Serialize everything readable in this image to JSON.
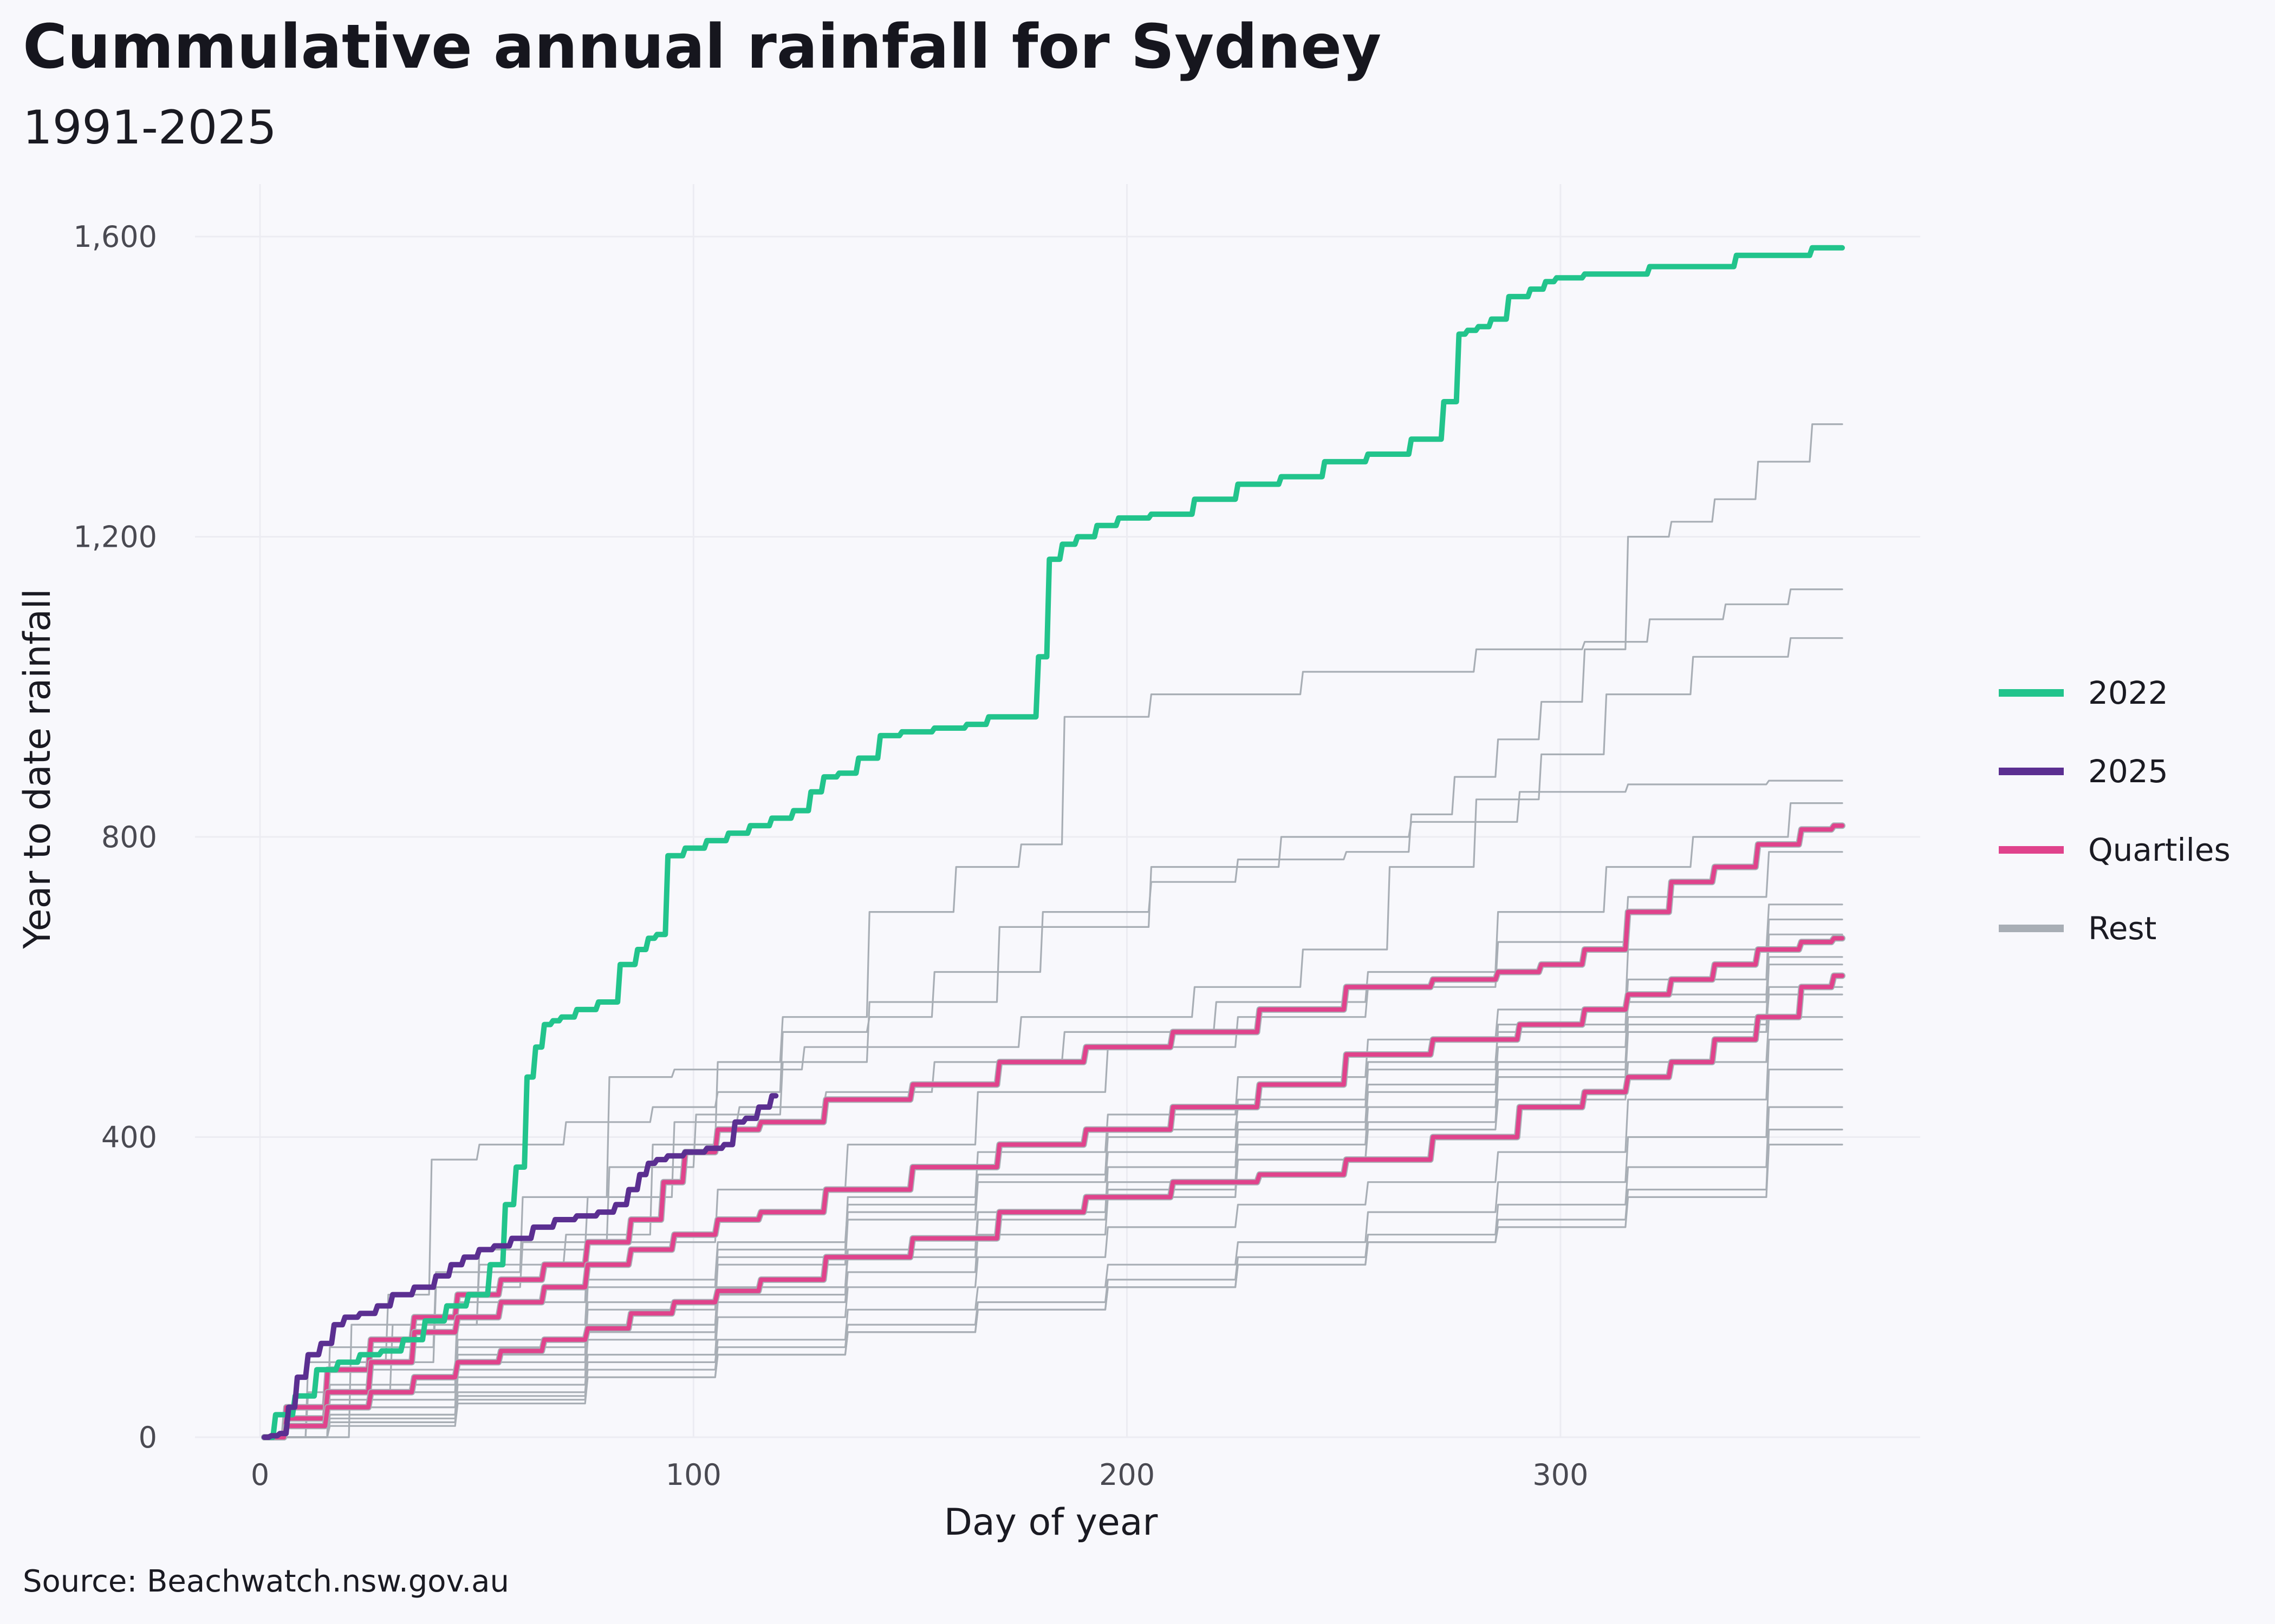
{
  "colors": {
    "background": "#f8f8fc",
    "year_2022": "#22c48c",
    "year_2025": "#5b2f91",
    "quartiles": "#e0438c",
    "rest": "#a8aeb5",
    "grid": "#ececf2"
  },
  "chart_data": {
    "type": "line",
    "title": "Cummulative annual rainfall for Sydney",
    "subtitle": "1991-2025",
    "xlabel": "Day of year",
    "ylabel": "Year to date rainfall",
    "caption": "Source: Beachwatch.nsw.gov.au",
    "xlim": [
      -15,
      383
    ],
    "ylim": [
      0,
      1670
    ],
    "x_ticks": [
      0,
      100,
      200,
      300
    ],
    "x_tick_labels": [
      "0",
      "100",
      "200",
      "300"
    ],
    "y_ticks": [
      0,
      400,
      800,
      1200,
      1600
    ],
    "y_tick_labels": [
      "0",
      "400",
      "800",
      "1,200",
      "1,600"
    ],
    "grid": true,
    "legend_position": "right",
    "legend": [
      {
        "label": "2022",
        "color_key": "year_2022"
      },
      {
        "label": "2025",
        "color_key": "year_2025"
      },
      {
        "label": "Quartiles",
        "color_key": "quartiles"
      },
      {
        "label": "Rest",
        "color_key": "rest"
      }
    ],
    "series": [
      {
        "name": "2022",
        "group": "2022",
        "x": [
          1,
          5,
          10,
          15,
          20,
          25,
          30,
          35,
          40,
          45,
          50,
          55,
          57,
          60,
          62,
          64,
          66,
          68,
          70,
          75,
          80,
          85,
          88,
          90,
          92,
          95,
          100,
          105,
          110,
          115,
          120,
          125,
          128,
          131,
          135,
          140,
          145,
          150,
          160,
          165,
          170,
          178,
          180,
          183,
          186,
          190,
          195,
          200,
          210,
          220,
          230,
          240,
          250,
          260,
          270,
          275,
          277,
          279,
          282,
          285,
          290,
          295,
          297,
          300,
          310,
          330,
          350,
          365
        ],
        "y": [
          0,
          30,
          55,
          90,
          100,
          110,
          115,
          130,
          155,
          175,
          190,
          230,
          310,
          360,
          480,
          520,
          550,
          555,
          560,
          570,
          580,
          630,
          650,
          665,
          670,
          775,
          785,
          795,
          805,
          815,
          825,
          835,
          860,
          880,
          885,
          905,
          935,
          940,
          945,
          950,
          960,
          960,
          1040,
          1170,
          1190,
          1200,
          1215,
          1225,
          1230,
          1250,
          1270,
          1280,
          1300,
          1310,
          1330,
          1380,
          1470,
          1475,
          1480,
          1490,
          1520,
          1530,
          1540,
          1545,
          1550,
          1560,
          1575,
          1585
        ]
      },
      {
        "name": "2025",
        "group": "2025",
        "x": [
          1,
          3,
          5,
          7,
          9,
          12,
          15,
          18,
          20,
          25,
          28,
          32,
          38,
          42,
          45,
          48,
          52,
          55,
          60,
          65,
          70,
          75,
          80,
          83,
          86,
          88,
          90,
          92,
          95,
          100,
          105,
          108,
          110,
          113,
          116,
          119
        ],
        "y": [
          0,
          2,
          5,
          40,
          80,
          110,
          125,
          150,
          160,
          165,
          175,
          190,
          200,
          215,
          230,
          240,
          250,
          255,
          265,
          280,
          290,
          295,
          300,
          310,
          330,
          350,
          365,
          370,
          375,
          380,
          385,
          390,
          420,
          425,
          440,
          455
        ]
      },
      {
        "name": "Quartile 3",
        "group": "quartiles",
        "x": [
          1,
          10,
          20,
          30,
          40,
          50,
          60,
          70,
          80,
          90,
          95,
          100,
          110,
          120,
          140,
          160,
          180,
          200,
          220,
          240,
          260,
          280,
          290,
          300,
          310,
          320,
          330,
          340,
          350,
          360,
          365
        ],
        "y": [
          0,
          40,
          90,
          130,
          160,
          190,
          210,
          230,
          260,
          290,
          340,
          380,
          410,
          420,
          450,
          470,
          500,
          520,
          540,
          570,
          600,
          610,
          620,
          630,
          650,
          700,
          740,
          760,
          790,
          810,
          815
        ]
      },
      {
        "name": "Quartile 2",
        "group": "quartiles",
        "x": [
          1,
          10,
          20,
          30,
          40,
          50,
          60,
          70,
          80,
          90,
          100,
          110,
          120,
          140,
          160,
          180,
          200,
          220,
          240,
          260,
          280,
          300,
          310,
          320,
          330,
          340,
          350,
          360,
          365
        ],
        "y": [
          0,
          25,
          60,
          100,
          140,
          160,
          180,
          200,
          230,
          250,
          270,
          290,
          300,
          330,
          360,
          390,
          410,
          440,
          470,
          510,
          530,
          550,
          570,
          590,
          610,
          630,
          650,
          660,
          665
        ]
      },
      {
        "name": "Quartile 1",
        "group": "quartiles",
        "x": [
          1,
          10,
          20,
          30,
          40,
          50,
          60,
          70,
          80,
          90,
          100,
          110,
          120,
          140,
          160,
          180,
          200,
          220,
          240,
          260,
          280,
          300,
          310,
          320,
          330,
          340,
          350,
          360,
          365
        ],
        "y": [
          0,
          15,
          40,
          60,
          80,
          100,
          115,
          130,
          145,
          165,
          180,
          195,
          210,
          240,
          265,
          300,
          320,
          340,
          350,
          370,
          400,
          440,
          460,
          480,
          500,
          530,
          560,
          600,
          615
        ]
      },
      {
        "name": "",
        "group": "rest",
        "x": [
          1,
          20,
          38,
          40,
          60,
          80,
          100,
          110,
          130,
          150,
          160,
          200,
          210,
          240,
          260,
          270,
          280,
          290,
          300,
          310,
          320,
          330,
          340,
          350,
          365
        ],
        "y": [
          0,
          100,
          190,
          370,
          390,
          420,
          440,
          460,
          540,
          560,
          620,
          700,
          740,
          770,
          780,
          830,
          880,
          930,
          980,
          1050,
          1200,
          1220,
          1250,
          1300,
          1350
        ]
      },
      {
        "name": "",
        "group": "rest",
        "x": [
          1,
          20,
          40,
          60,
          80,
          100,
          110,
          130,
          150,
          170,
          180,
          190,
          220,
          260,
          300,
          310,
          330,
          345,
          360,
          365
        ],
        "y": [
          0,
          60,
          150,
          230,
          270,
          390,
          500,
          560,
          700,
          760,
          790,
          960,
          990,
          1020,
          1050,
          1060,
          1090,
          1110,
          1130,
          1130
        ]
      },
      {
        "name": "",
        "group": "rest",
        "x": [
          1,
          30,
          50,
          70,
          90,
          100,
          150,
          200,
          230,
          250,
          270,
          290,
          300,
          320,
          340,
          365
        ],
        "y": [
          0,
          120,
          220,
          320,
          480,
          490,
          520,
          560,
          600,
          650,
          760,
          850,
          910,
          990,
          1040,
          1065
        ]
      },
      {
        "name": "",
        "group": "rest",
        "x": [
          1,
          30,
          50,
          70,
          90,
          110,
          130,
          150,
          190,
          220,
          250,
          280,
          300,
          330,
          365
        ],
        "y": [
          0,
          100,
          200,
          260,
          360,
          430,
          500,
          580,
          680,
          760,
          800,
          820,
          860,
          870,
          875
        ]
      },
      {
        "name": "",
        "group": "rest",
        "x": [
          1,
          40,
          60,
          90,
          100,
          120,
          140,
          170,
          200,
          240,
          270,
          300,
          320,
          340,
          365
        ],
        "y": [
          0,
          150,
          250,
          320,
          420,
          440,
          460,
          500,
          540,
          580,
          620,
          700,
          760,
          800,
          845
        ]
      },
      {
        "name": "",
        "group": "rest",
        "x": [
          1,
          30,
          60,
          90,
          120,
          150,
          180,
          210,
          240,
          270,
          300,
          330,
          365
        ],
        "y": [
          0,
          90,
          180,
          260,
          330,
          390,
          460,
          520,
          560,
          600,
          660,
          720,
          780
        ]
      },
      {
        "name": "",
        "group": "rest",
        "x": [
          1,
          30,
          60,
          90,
          120,
          150,
          180,
          210,
          240,
          270,
          300,
          330,
          365
        ],
        "y": [
          0,
          60,
          130,
          200,
          250,
          320,
          380,
          430,
          480,
          530,
          570,
          650,
          710
        ]
      },
      {
        "name": "",
        "group": "rest",
        "x": [
          1,
          30,
          60,
          90,
          120,
          150,
          180,
          210,
          240,
          270,
          300,
          330,
          365
        ],
        "y": [
          0,
          70,
          150,
          210,
          260,
          310,
          350,
          410,
          440,
          490,
          550,
          610,
          690
        ]
      },
      {
        "name": "",
        "group": "rest",
        "x": [
          1,
          30,
          60,
          90,
          120,
          150,
          180,
          210,
          240,
          270,
          300,
          330,
          365
        ],
        "y": [
          0,
          50,
          110,
          170,
          230,
          290,
          340,
          380,
          420,
          470,
          520,
          580,
          670
        ]
      },
      {
        "name": "",
        "group": "rest",
        "x": [
          1,
          30,
          60,
          90,
          120,
          150,
          180,
          210,
          240,
          270,
          300,
          330,
          365
        ],
        "y": [
          0,
          60,
          120,
          180,
          240,
          300,
          350,
          400,
          450,
          500,
          540,
          590,
          640
        ]
      },
      {
        "name": "",
        "group": "rest",
        "x": [
          1,
          30,
          60,
          90,
          120,
          150,
          180,
          210,
          240,
          270,
          300,
          330,
          365
        ],
        "y": [
          0,
          40,
          90,
          140,
          190,
          250,
          300,
          360,
          410,
          460,
          500,
          560,
          630
        ]
      },
      {
        "name": "",
        "group": "rest",
        "x": [
          1,
          30,
          60,
          90,
          120,
          150,
          180,
          210,
          240,
          270,
          300,
          330,
          365
        ],
        "y": [
          0,
          30,
          80,
          130,
          180,
          220,
          270,
          320,
          370,
          420,
          480,
          540,
          600
        ]
      },
      {
        "name": "",
        "group": "rest",
        "x": [
          1,
          30,
          60,
          90,
          120,
          150,
          180,
          210,
          240,
          270,
          300,
          330,
          365
        ],
        "y": [
          0,
          50,
          100,
          150,
          200,
          250,
          300,
          340,
          390,
          440,
          490,
          550,
          590
        ]
      },
      {
        "name": "",
        "group": "rest",
        "x": [
          1,
          30,
          60,
          90,
          120,
          150,
          180,
          210,
          240,
          270,
          300,
          330,
          365
        ],
        "y": [
          0,
          40,
          90,
          150,
          200,
          240,
          290,
          330,
          370,
          410,
          450,
          500,
          560
        ]
      },
      {
        "name": "",
        "group": "rest",
        "x": [
          1,
          30,
          60,
          90,
          120,
          150,
          180,
          210,
          240,
          270,
          300,
          330,
          365
        ],
        "y": [
          0,
          30,
          70,
          110,
          160,
          200,
          240,
          280,
          310,
          340,
          380,
          450,
          530
        ]
      },
      {
        "name": "",
        "group": "rest",
        "x": [
          1,
          30,
          60,
          90,
          120,
          150,
          180,
          210,
          240,
          270,
          300,
          330,
          365
        ],
        "y": [
          0,
          20,
          60,
          100,
          130,
          170,
          200,
          230,
          260,
          300,
          340,
          400,
          490
        ]
      },
      {
        "name": "",
        "group": "rest",
        "x": [
          1,
          30,
          60,
          90,
          120,
          150,
          180,
          210,
          240,
          270,
          300,
          330,
          365
        ],
        "y": [
          0,
          25,
          55,
          90,
          120,
          150,
          180,
          210,
          240,
          270,
          310,
          360,
          440
        ]
      },
      {
        "name": "",
        "group": "rest",
        "x": [
          1,
          30,
          60,
          90,
          120,
          150,
          180,
          210,
          240,
          270,
          300,
          330,
          365
        ],
        "y": [
          0,
          20,
          50,
          80,
          110,
          140,
          170,
          200,
          230,
          260,
          290,
          330,
          410
        ]
      },
      {
        "name": "",
        "group": "rest",
        "x": [
          1,
          30,
          60,
          90,
          120,
          150,
          180,
          210,
          240,
          270,
          300,
          330,
          365
        ],
        "y": [
          0,
          15,
          45,
          80,
          110,
          140,
          170,
          200,
          230,
          260,
          280,
          320,
          390
        ]
      }
    ]
  }
}
